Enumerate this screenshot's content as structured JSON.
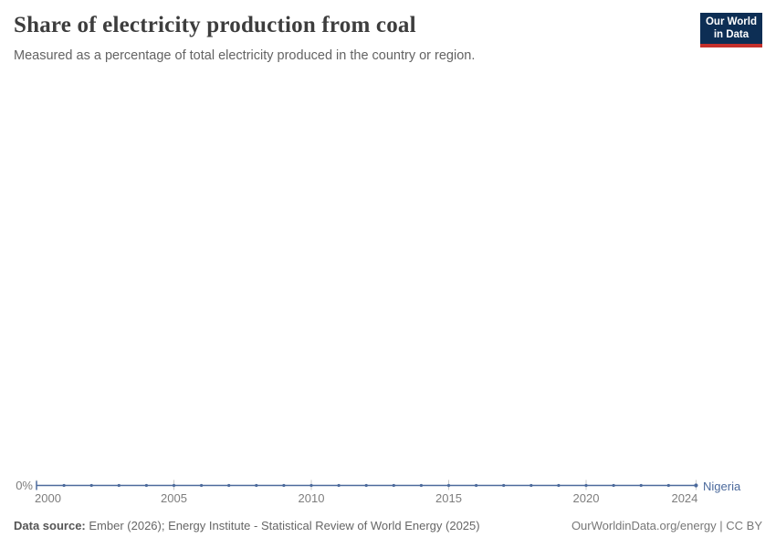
{
  "header": {
    "title": "Share of electricity production from coal",
    "subtitle": "Measured as a percentage of total electricity produced in the country or region.",
    "logo": {
      "line1": "Our World",
      "line2": "in Data",
      "bg_color": "#0d2e54",
      "accent_color": "#c5302b"
    }
  },
  "chart_data": {
    "type": "line",
    "title": "Share of electricity production from coal",
    "xlabel": "",
    "ylabel": "",
    "x": [
      2000,
      2001,
      2002,
      2003,
      2004,
      2005,
      2006,
      2007,
      2008,
      2009,
      2010,
      2011,
      2012,
      2013,
      2014,
      2015,
      2016,
      2017,
      2018,
      2019,
      2020,
      2021,
      2022,
      2023,
      2024
    ],
    "series": [
      {
        "name": "Nigeria",
        "color": "#4c6a9c",
        "values": [
          0,
          0,
          0,
          0,
          0,
          0,
          0,
          0,
          0,
          0,
          0,
          0,
          0,
          0,
          0,
          0,
          0,
          0,
          0,
          0,
          0,
          0,
          0,
          0,
          0
        ]
      }
    ],
    "x_ticks": [
      "2000",
      "2005",
      "2010",
      "2015",
      "2020",
      "2024"
    ],
    "y_ticks": [
      "0%"
    ],
    "ylim": [
      0,
      100
    ],
    "grid": false,
    "legend_position": "end-of-line"
  },
  "footer": {
    "source_label": "Data source:",
    "source_text": "Ember (2026); Energy Institute - Statistical Review of World Energy (2025)",
    "credit": "OurWorldinData.org/energy | CC BY"
  }
}
